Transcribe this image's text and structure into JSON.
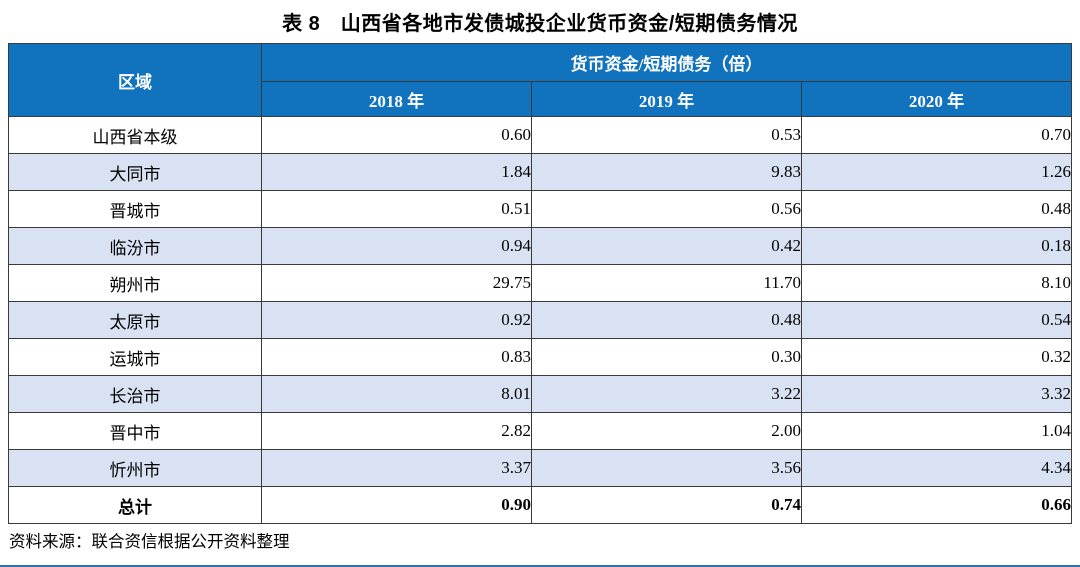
{
  "title": "表 8　山西省各地市发债城投企业货币资金/短期债务情况",
  "table": {
    "region_header": "区域",
    "group_header": "货币资金/短期债务（倍）",
    "year_headers": [
      "2018 年",
      "2019 年",
      "2020 年"
    ],
    "rows": [
      {
        "region": "山西省本级",
        "values": [
          "0.60",
          "0.53",
          "0.70"
        ]
      },
      {
        "region": "大同市",
        "values": [
          "1.84",
          "9.83",
          "1.26"
        ]
      },
      {
        "region": "晋城市",
        "values": [
          "0.51",
          "0.56",
          "0.48"
        ]
      },
      {
        "region": "临汾市",
        "values": [
          "0.94",
          "0.42",
          "0.18"
        ]
      },
      {
        "region": "朔州市",
        "values": [
          "29.75",
          "11.70",
          "8.10"
        ]
      },
      {
        "region": "太原市",
        "values": [
          "0.92",
          "0.48",
          "0.54"
        ]
      },
      {
        "region": "运城市",
        "values": [
          "0.83",
          "0.30",
          "0.32"
        ]
      },
      {
        "region": "长治市",
        "values": [
          "8.01",
          "3.22",
          "3.32"
        ]
      },
      {
        "region": "晋中市",
        "values": [
          "2.82",
          "2.00",
          "1.04"
        ]
      },
      {
        "region": "忻州市",
        "values": [
          "3.37",
          "3.56",
          "4.34"
        ]
      },
      {
        "region": "总计",
        "values": [
          "0.90",
          "0.74",
          "0.66"
        ]
      }
    ]
  },
  "source_note": "资料来源：联合资信根据公开资料整理",
  "colors": {
    "header_bg": "#1172BD",
    "header_text": "#FFFFFF",
    "alt_row_bg": "#D9E2F3",
    "border": "#3A3A3A",
    "bottom_rule": "#2E74B5"
  }
}
